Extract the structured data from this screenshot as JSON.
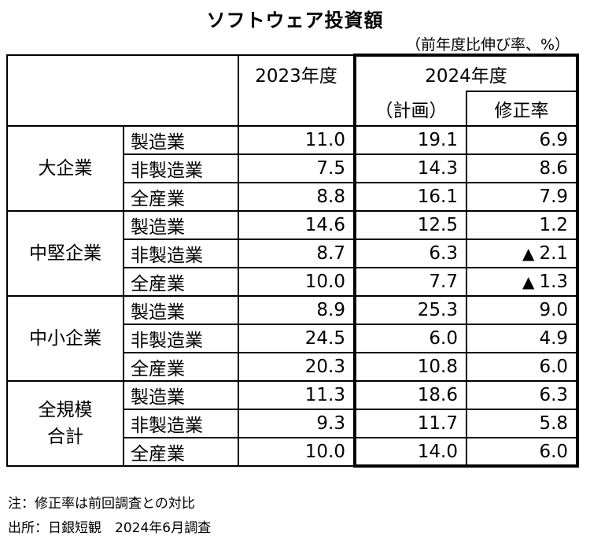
{
  "title": "ソフトウェア投資額",
  "unit": "（前年度比伸び率、%）",
  "headers": {
    "fy2023": "2023年度",
    "fy2024": "2024年度",
    "plan": "（計画）",
    "revision": "修正率"
  },
  "groups": [
    {
      "label": "大企業",
      "rows": [
        {
          "sub": "製造業",
          "v2023": "11.0",
          "plan": "19.1",
          "rev": "6.9",
          "neg": false
        },
        {
          "sub": "非製造業",
          "v2023": "7.5",
          "plan": "14.3",
          "rev": "8.6",
          "neg": false
        },
        {
          "sub": "全産業",
          "v2023": "8.8",
          "plan": "16.1",
          "rev": "7.9",
          "neg": false
        }
      ]
    },
    {
      "label": "中堅企業",
      "rows": [
        {
          "sub": "製造業",
          "v2023": "14.6",
          "plan": "12.5",
          "rev": "1.2",
          "neg": false
        },
        {
          "sub": "非製造業",
          "v2023": "8.7",
          "plan": "6.3",
          "rev": "2.1",
          "neg": true
        },
        {
          "sub": "全産業",
          "v2023": "10.0",
          "plan": "7.7",
          "rev": "1.3",
          "neg": true
        }
      ]
    },
    {
      "label": "中小企業",
      "rows": [
        {
          "sub": "製造業",
          "v2023": "8.9",
          "plan": "25.3",
          "rev": "9.0",
          "neg": false
        },
        {
          "sub": "非製造業",
          "v2023": "24.5",
          "plan": "6.0",
          "rev": "4.9",
          "neg": false
        },
        {
          "sub": "全産業",
          "v2023": "20.3",
          "plan": "10.8",
          "rev": "6.0",
          "neg": false
        }
      ]
    },
    {
      "label": "全規模\n合計",
      "rows": [
        {
          "sub": "製造業",
          "v2023": "11.3",
          "plan": "18.6",
          "rev": "6.3",
          "neg": false
        },
        {
          "sub": "非製造業",
          "v2023": "9.3",
          "plan": "11.7",
          "rev": "5.8",
          "neg": false
        },
        {
          "sub": "全産業",
          "v2023": "10.0",
          "plan": "14.0",
          "rev": "6.0",
          "neg": false
        }
      ]
    }
  ],
  "neg_marker": "▲",
  "notes": {
    "note": "注：修正率は前回調査との対比",
    "source": "出所：日銀短観　2024年6月調査"
  }
}
